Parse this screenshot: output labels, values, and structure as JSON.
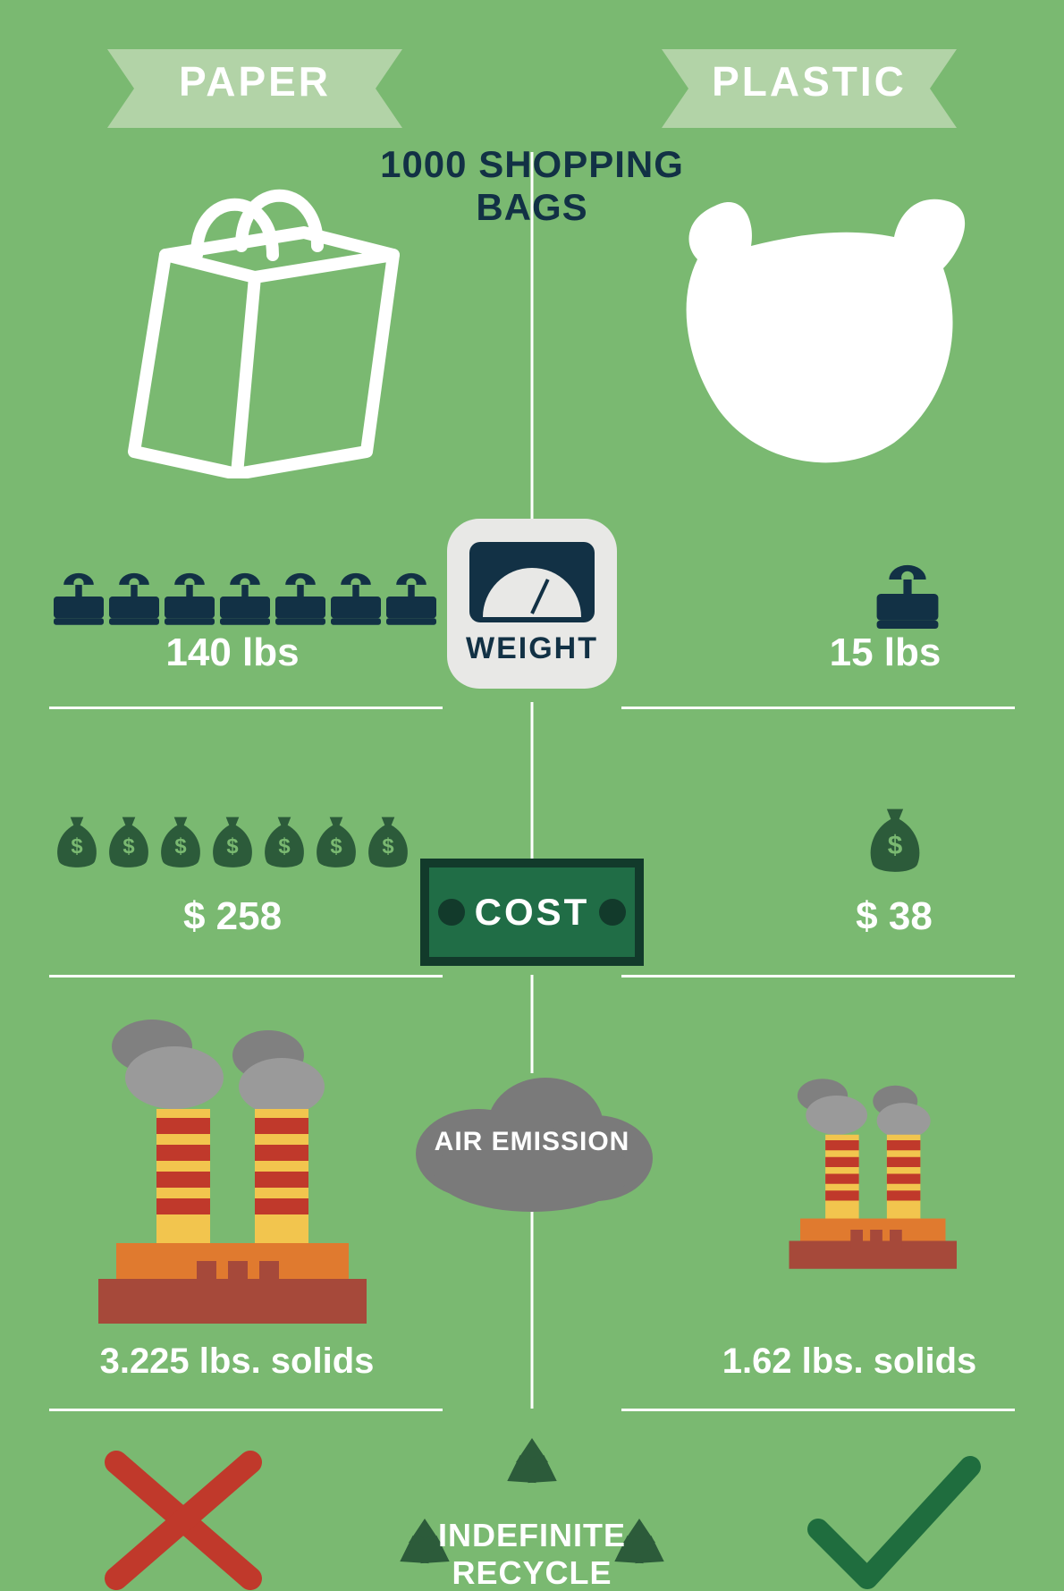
{
  "colors": {
    "bg": "#7ab971",
    "white": "#ffffff",
    "navy": "#123145",
    "ribbon": "#b2d3a7",
    "darkgreen": "#2c5b3a",
    "money": "#206d46",
    "money_border": "#123a2b",
    "gray": "#7a7a7a",
    "cloud": "#808080",
    "red": "#c0392b",
    "check_green": "#1f6d3e",
    "badge_bg": "#e8e8e6",
    "factory_orange": "#e07a2f",
    "factory_red": "#c0392b",
    "factory_base": "#a6493a",
    "factory_yellow": "#f2c54e"
  },
  "header": {
    "left_label": "PAPER",
    "right_label": "PLASTIC",
    "title_line1": "1000 SHOPPING",
    "title_line2": "BAGS"
  },
  "sections": {
    "weight": {
      "label": "WEIGHT",
      "paper": {
        "icon_count": 7,
        "value": "140 lbs"
      },
      "plastic": {
        "icon_count": 1,
        "value": "15 lbs"
      }
    },
    "cost": {
      "label": "COST",
      "paper": {
        "icon_count": 7,
        "value": "$ 258"
      },
      "plastic": {
        "icon_count": 1,
        "value": "$ 38"
      }
    },
    "emission": {
      "label": "AIR EMISSION",
      "paper_value": "3.225 lbs. solids",
      "plastic_value": "1.62 lbs. solids"
    },
    "recycle": {
      "label_line1": "INDEFINITE",
      "label_line2": "RECYCLE",
      "paper": "no",
      "plastic": "yes"
    }
  }
}
